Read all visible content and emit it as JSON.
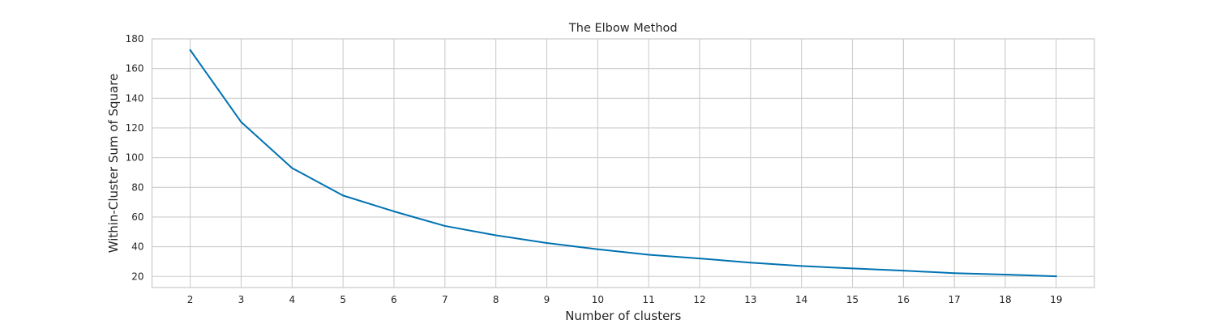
{
  "chart_data": {
    "type": "line",
    "title": "The Elbow Method",
    "xlabel": "Number of clusters",
    "ylabel": "Within-Cluster Sum of Square",
    "x": [
      2,
      3,
      4,
      5,
      6,
      7,
      8,
      9,
      10,
      11,
      12,
      13,
      14,
      15,
      16,
      17,
      18,
      19
    ],
    "series": [
      {
        "values": [
          172.5,
          124,
          93,
          74.5,
          63.8,
          54,
          47.7,
          42.5,
          38.3,
          34.6,
          32.1,
          29.3,
          27,
          25.4,
          23.9,
          22.2,
          21.2,
          20.1
        ],
        "color": "#0072b2"
      }
    ],
    "xlim": [
      1.25,
      19.75
    ],
    "ylim": [
      12.5,
      180
    ],
    "xticks": [
      2,
      3,
      4,
      5,
      6,
      7,
      8,
      9,
      10,
      11,
      12,
      13,
      14,
      15,
      16,
      17,
      18,
      19
    ],
    "yticks": [
      20,
      40,
      60,
      80,
      100,
      120,
      140,
      160,
      180
    ],
    "grid": true,
    "legend": "none"
  }
}
